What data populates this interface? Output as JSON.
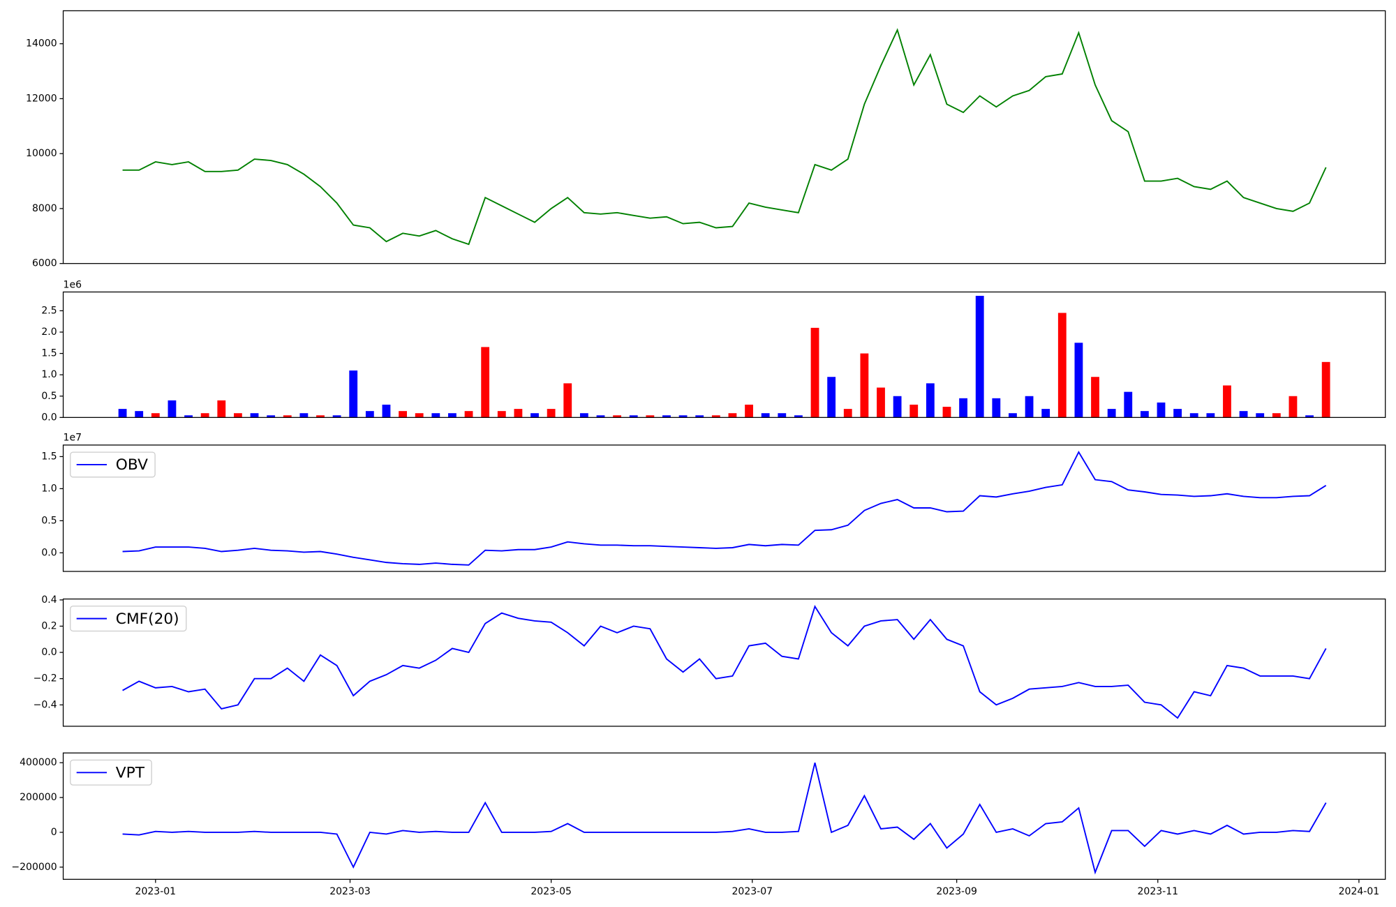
{
  "chart_data": [
    {
      "type": "line",
      "x": [
        19348,
        19353,
        19358,
        19363,
        19368,
        19373,
        19378,
        19383,
        19388,
        19393,
        19398,
        19403,
        19408,
        19413,
        19418,
        19423,
        19428,
        19433,
        19438,
        19443,
        19448,
        19453,
        19458,
        19463,
        19468,
        19473,
        19478,
        19483,
        19488,
        19493,
        19498,
        19503,
        19508,
        19513,
        19518,
        19523,
        19528,
        19533,
        19538,
        19543,
        19548,
        19553,
        19558,
        19563,
        19568,
        19573,
        19578,
        19583,
        19588,
        19593,
        19598,
        19603,
        19608,
        19613,
        19618,
        19623,
        19628,
        19633,
        19638,
        19643,
        19648,
        19653,
        19658,
        19663,
        19668,
        19673,
        19678,
        19683,
        19688,
        19693,
        19698,
        19703,
        19708,
        19713
      ],
      "xlim": [
        19330,
        19731
      ],
      "series": [
        {
          "color": "green",
          "values": [
            9400,
            9400,
            9700,
            9600,
            9700,
            9350,
            9350,
            9400,
            9800,
            9750,
            9600,
            9250,
            8800,
            8200,
            7400,
            7300,
            6800,
            7100,
            7000,
            7200,
            6900,
            6700,
            8400,
            8100,
            7800,
            7500,
            8000,
            8400,
            7850,
            7800,
            7850,
            7750,
            7650,
            7700,
            7450,
            7500,
            7300,
            7350,
            8200,
            8050,
            7950,
            7850,
            9600,
            9400,
            9800,
            11800,
            13200,
            14500,
            12500,
            13600,
            11800,
            11500,
            12100,
            11700,
            12100,
            12300,
            12800,
            12900,
            14400,
            12500,
            11200,
            10800,
            9000,
            9000,
            9100,
            8800,
            8700,
            9000,
            8400,
            8200,
            8000,
            7900,
            8200,
            9500
          ]
        }
      ],
      "ylim": [
        6000,
        15200
      ],
      "yticks": [
        6000,
        8000,
        10000,
        12000,
        14000
      ]
    },
    {
      "type": "bar",
      "x": [
        19348,
        19353,
        19358,
        19363,
        19368,
        19373,
        19378,
        19383,
        19388,
        19393,
        19398,
        19403,
        19408,
        19413,
        19418,
        19423,
        19428,
        19433,
        19438,
        19443,
        19448,
        19453,
        19458,
        19463,
        19468,
        19473,
        19478,
        19483,
        19488,
        19493,
        19498,
        19503,
        19508,
        19513,
        19518,
        19523,
        19528,
        19533,
        19538,
        19543,
        19548,
        19553,
        19558,
        19563,
        19568,
        19573,
        19578,
        19583,
        19588,
        19593,
        19598,
        19603,
        19608,
        19613,
        19618,
        19623,
        19628,
        19633,
        19638,
        19643,
        19648,
        19653,
        19658,
        19663,
        19668,
        19673,
        19678,
        19683,
        19688,
        19693,
        19698,
        19703,
        19708,
        19713
      ],
      "xlim": [
        19330,
        19731
      ],
      "values": [
        200000,
        150000,
        100000,
        400000,
        50000,
        100000,
        400000,
        100000,
        100000,
        50000,
        50000,
        100000,
        50000,
        50000,
        1100000,
        150000,
        300000,
        150000,
        100000,
        100000,
        100000,
        150000,
        1650000,
        150000,
        200000,
        100000,
        200000,
        800000,
        100000,
        50000,
        50000,
        50000,
        50000,
        50000,
        50000,
        50000,
        50000,
        100000,
        300000,
        100000,
        100000,
        50000,
        2100000,
        950000,
        200000,
        1500000,
        700000,
        500000,
        300000,
        800000,
        250000,
        450000,
        2850000,
        450000,
        100000,
        500000,
        200000,
        2450000,
        1750000,
        950000,
        200000,
        600000,
        150000,
        350000,
        200000,
        100000,
        100000,
        750000,
        150000,
        100000,
        100000,
        500000,
        50000,
        1300000
      ],
      "colors": [
        "blue",
        "blue",
        "red",
        "blue",
        "blue",
        "red",
        "red",
        "red",
        "blue",
        "blue",
        "red",
        "blue",
        "red",
        "blue",
        "blue",
        "blue",
        "blue",
        "red",
        "red",
        "blue",
        "blue",
        "red",
        "red",
        "red",
        "red",
        "blue",
        "red",
        "red",
        "blue",
        "blue",
        "red",
        "blue",
        "red",
        "blue",
        "blue",
        "blue",
        "red",
        "red",
        "red",
        "blue",
        "blue",
        "blue",
        "red",
        "blue",
        "red",
        "red",
        "red",
        "blue",
        "red",
        "blue",
        "red",
        "blue",
        "blue",
        "blue",
        "blue",
        "blue",
        "blue",
        "red",
        "blue",
        "red",
        "blue",
        "blue",
        "blue",
        "blue",
        "blue",
        "blue",
        "blue",
        "red",
        "blue",
        "blue",
        "red",
        "red",
        "blue",
        "red"
      ],
      "ylim": [
        0,
        2940000
      ],
      "yticks": [
        {
          "value": 0,
          "label": "0.0"
        },
        {
          "value": 500000,
          "label": "0.5"
        },
        {
          "value": 1000000,
          "label": "1.0"
        },
        {
          "value": 1500000,
          "label": "1.5"
        },
        {
          "value": 2000000,
          "label": "2.0"
        },
        {
          "value": 2500000,
          "label": "2.5"
        }
      ],
      "offset_label": "1e6"
    },
    {
      "type": "line",
      "x": [
        19348,
        19353,
        19358,
        19363,
        19368,
        19373,
        19378,
        19383,
        19388,
        19393,
        19398,
        19403,
        19408,
        19413,
        19418,
        19423,
        19428,
        19433,
        19438,
        19443,
        19448,
        19453,
        19458,
        19463,
        19468,
        19473,
        19478,
        19483,
        19488,
        19493,
        19498,
        19503,
        19508,
        19513,
        19518,
        19523,
        19528,
        19533,
        19538,
        19543,
        19548,
        19553,
        19558,
        19563,
        19568,
        19573,
        19578,
        19583,
        19588,
        19593,
        19598,
        19603,
        19608,
        19613,
        19618,
        19623,
        19628,
        19633,
        19638,
        19643,
        19648,
        19653,
        19658,
        19663,
        19668,
        19673,
        19678,
        19683,
        19688,
        19693,
        19698,
        19703,
        19708,
        19713
      ],
      "xlim": [
        19330,
        19731
      ],
      "series": [
        {
          "name": "OBV",
          "color": "blue",
          "values": [
            200000,
            300000,
            900000,
            900000,
            900000,
            700000,
            200000,
            400000,
            700000,
            400000,
            300000,
            100000,
            200000,
            -200000,
            -700000,
            -1100000,
            -1500000,
            -1700000,
            -1800000,
            -1600000,
            -1800000,
            -1900000,
            400000,
            300000,
            500000,
            500000,
            900000,
            1700000,
            1400000,
            1200000,
            1200000,
            1100000,
            1100000,
            1000000,
            900000,
            800000,
            700000,
            800000,
            1300000,
            1100000,
            1300000,
            1200000,
            3500000,
            3600000,
            4300000,
            6600000,
            7700000,
            8300000,
            7000000,
            7000000,
            6400000,
            6500000,
            8900000,
            8700000,
            9200000,
            9600000,
            10200000,
            10600000,
            15700000,
            11400000,
            11100000,
            9800000,
            9500000,
            9100000,
            9000000,
            8800000,
            8900000,
            9200000,
            8800000,
            8600000,
            8600000,
            8800000,
            8900000,
            10500000
          ]
        }
      ],
      "ylim": [
        -2900000,
        16800000
      ],
      "yticks": [
        {
          "value": 0,
          "label": "0.0"
        },
        {
          "value": 5000000,
          "label": "0.5"
        },
        {
          "value": 10000000,
          "label": "1.0"
        },
        {
          "value": 15000000,
          "label": "1.5"
        }
      ],
      "offset_label": "1e7",
      "legend": "upper left"
    },
    {
      "type": "line",
      "x": [
        19348,
        19353,
        19358,
        19363,
        19368,
        19373,
        19378,
        19383,
        19388,
        19393,
        19398,
        19403,
        19408,
        19413,
        19418,
        19423,
        19428,
        19433,
        19438,
        19443,
        19448,
        19453,
        19458,
        19463,
        19468,
        19473,
        19478,
        19483,
        19488,
        19493,
        19498,
        19503,
        19508,
        19513,
        19518,
        19523,
        19528,
        19533,
        19538,
        19543,
        19548,
        19553,
        19558,
        19563,
        19568,
        19573,
        19578,
        19583,
        19588,
        19593,
        19598,
        19603,
        19608,
        19613,
        19618,
        19623,
        19628,
        19633,
        19638,
        19643,
        19648,
        19653,
        19658,
        19663,
        19668,
        19673,
        19678,
        19683,
        19688,
        19693,
        19698,
        19703,
        19708,
        19713
      ],
      "xlim": [
        19330,
        19731
      ],
      "series": [
        {
          "name": "CMF(20)",
          "color": "blue",
          "values": [
            -0.29,
            -0.22,
            -0.27,
            -0.26,
            -0.3,
            -0.28,
            -0.43,
            -0.4,
            -0.2,
            -0.2,
            -0.12,
            -0.22,
            -0.02,
            -0.1,
            -0.33,
            -0.22,
            -0.17,
            -0.1,
            -0.12,
            -0.06,
            0.03,
            0.0,
            0.22,
            0.3,
            0.26,
            0.24,
            0.23,
            0.15,
            0.05,
            0.2,
            0.15,
            0.2,
            0.18,
            -0.05,
            -0.15,
            -0.05,
            -0.2,
            -0.18,
            0.05,
            0.07,
            -0.03,
            -0.05,
            0.35,
            0.15,
            0.05,
            0.2,
            0.24,
            0.25,
            0.1,
            0.25,
            0.1,
            0.05,
            -0.3,
            -0.4,
            -0.35,
            -0.28,
            -0.27,
            -0.26,
            -0.23,
            -0.26,
            -0.26,
            -0.25,
            -0.38,
            -0.4,
            -0.5,
            -0.3,
            -0.33,
            -0.1,
            -0.12,
            -0.18,
            -0.18,
            -0.18,
            -0.2,
            0.03
          ]
        }
      ],
      "ylim": [
        -0.563,
        0.407
      ],
      "yticks": [
        {
          "value": -0.4,
          "label": "−0.4"
        },
        {
          "value": -0.2,
          "label": "−0.2"
        },
        {
          "value": 0,
          "label": "0.0"
        },
        0.2,
        0.4
      ],
      "legend": "upper left"
    },
    {
      "type": "line",
      "x": [
        19348,
        19353,
        19358,
        19363,
        19368,
        19373,
        19378,
        19383,
        19388,
        19393,
        19398,
        19403,
        19408,
        19413,
        19418,
        19423,
        19428,
        19433,
        19438,
        19443,
        19448,
        19453,
        19458,
        19463,
        19468,
        19473,
        19478,
        19483,
        19488,
        19493,
        19498,
        19503,
        19508,
        19513,
        19518,
        19523,
        19528,
        19533,
        19538,
        19543,
        19548,
        19553,
        19558,
        19563,
        19568,
        19573,
        19578,
        19583,
        19588,
        19593,
        19598,
        19603,
        19608,
        19613,
        19618,
        19623,
        19628,
        19633,
        19638,
        19643,
        19648,
        19653,
        19658,
        19663,
        19668,
        19673,
        19678,
        19683,
        19688,
        19693,
        19698,
        19703,
        19708,
        19713
      ],
      "xlim": [
        19330,
        19731
      ],
      "series": [
        {
          "name": "VPT",
          "color": "blue",
          "values": [
            -10000,
            -15000,
            5000,
            0,
            5000,
            0,
            0,
            0,
            5000,
            0,
            0,
            0,
            0,
            -10000,
            -200000,
            0,
            -10000,
            10000,
            0,
            5000,
            0,
            0,
            170000,
            0,
            0,
            0,
            5000,
            50000,
            0,
            0,
            0,
            0,
            0,
            0,
            0,
            0,
            0,
            5000,
            20000,
            0,
            0,
            5000,
            400000,
            0,
            40000,
            210000,
            20000,
            30000,
            -40000,
            50000,
            -90000,
            -10000,
            160000,
            0,
            20000,
            -20000,
            50000,
            60000,
            140000,
            -230000,
            10000,
            10000,
            -80000,
            10000,
            -10000,
            10000,
            -10000,
            40000,
            -10000,
            0,
            0,
            10000,
            5000,
            170000
          ]
        }
      ],
      "ylim": [
        -270000,
        456000
      ],
      "yticks": [
        {
          "value": -200000,
          "label": "−200000"
        },
        0,
        200000,
        400000
      ],
      "xticks": [
        {
          "value": 19358,
          "label": "2023-01"
        },
        {
          "value": 19417,
          "label": "2023-03"
        },
        {
          "value": 19478,
          "label": "2023-05"
        },
        {
          "value": 19539,
          "label": "2023-07"
        },
        {
          "value": 19601,
          "label": "2023-09"
        },
        {
          "value": 19662,
          "label": "2023-11"
        },
        {
          "value": 19723,
          "label": "2024-01"
        }
      ],
      "legend": "upper left"
    }
  ]
}
